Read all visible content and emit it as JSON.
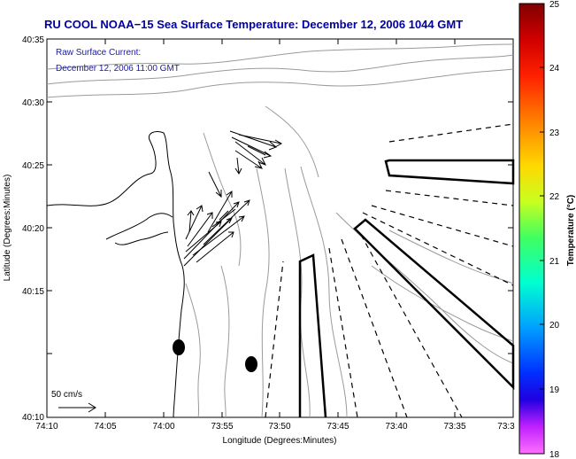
{
  "title": "RU COOL  NOAA−15  Sea Surface Temperature:  December 12, 2006 1044 GMT",
  "current_note": {
    "line1": "Raw Surface Current:",
    "line2": "December 12, 2006 11:00 GMT"
  },
  "scale_label": "50 cm/s",
  "axes": {
    "xlabel": "Longitude (Degrees:Minutes)",
    "ylabel": "Latitude (Degrees:Minutes)",
    "x_ticks": [
      "74:10",
      "74:05",
      "74:00",
      "73:55",
      "73:50",
      "73:45",
      "73:40",
      "73:35",
      "73:3"
    ],
    "y_ticks": [
      "40:35",
      "40:30",
      "40:25",
      "40:20",
      "40:15",
      "40:10"
    ]
  },
  "colorbar": {
    "label": "Temperature (°C)",
    "min": 18,
    "max": 25,
    "ticks": [
      "25",
      "24",
      "23",
      "22",
      "21",
      "20",
      "19",
      "18"
    ]
  },
  "colors": {
    "title": "#0000a0",
    "note": "#1a1aa0",
    "contour": "#999999",
    "coast": "#000000"
  }
}
